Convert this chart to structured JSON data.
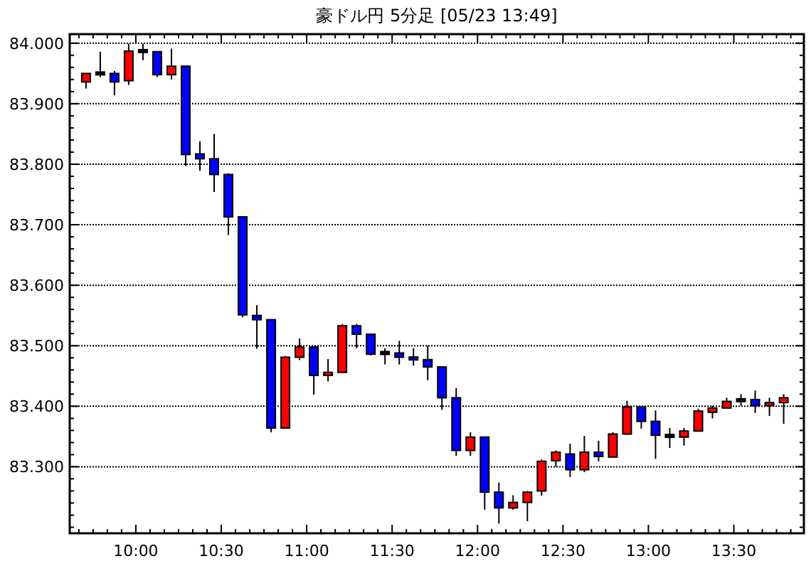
{
  "chart_data": {
    "type": "candlestick",
    "title": "豪ドル円 5分足 [05/23 13:49]",
    "x": [
      9.7083,
      9.7917,
      9.875,
      9.9583,
      10.0417,
      10.125,
      10.2083,
      10.2917,
      10.375,
      10.4583,
      10.5417,
      10.625,
      10.7083,
      10.7917,
      10.875,
      10.9583,
      11.0417,
      11.125,
      11.2083,
      11.2917,
      11.375,
      11.4583,
      11.5417,
      11.625,
      11.7083,
      11.7917,
      11.875,
      11.9583,
      12.0417,
      12.125,
      12.2083,
      12.2917,
      12.375,
      12.4583,
      12.5417,
      12.625,
      12.7083,
      12.7917,
      12.875,
      12.9583,
      13.0417,
      13.125,
      13.2083,
      13.2917,
      13.375,
      13.4583,
      13.5417,
      13.625,
      13.7083,
      13.7917
    ],
    "ohlc": [
      [
        83.936,
        83.95,
        83.925,
        83.95
      ],
      [
        83.95,
        83.986,
        83.944,
        83.95
      ],
      [
        83.95,
        83.954,
        83.914,
        83.936
      ],
      [
        83.938,
        83.999,
        83.931,
        83.987
      ],
      [
        83.987,
        83.999,
        83.972,
        83.987
      ],
      [
        83.986,
        83.986,
        83.944,
        83.948
      ],
      [
        83.948,
        83.991,
        83.94,
        83.962
      ],
      [
        83.962,
        83.962,
        83.797,
        83.816
      ],
      [
        83.817,
        83.838,
        83.789,
        83.809
      ],
      [
        83.809,
        83.85,
        83.754,
        83.783
      ],
      [
        83.783,
        83.785,
        83.683,
        83.713
      ],
      [
        83.713,
        83.713,
        83.547,
        83.551
      ],
      [
        83.55,
        83.567,
        83.495,
        83.543
      ],
      [
        83.543,
        83.543,
        83.357,
        83.364
      ],
      [
        83.364,
        83.483,
        83.364,
        83.481
      ],
      [
        83.481,
        83.512,
        83.476,
        83.498
      ],
      [
        83.498,
        83.498,
        83.419,
        83.451
      ],
      [
        83.451,
        83.478,
        83.441,
        83.456
      ],
      [
        83.456,
        83.536,
        83.456,
        83.533
      ],
      [
        83.533,
        83.536,
        83.496,
        83.519
      ],
      [
        83.519,
        83.519,
        83.484,
        83.486
      ],
      [
        83.488,
        83.496,
        83.469,
        83.488
      ],
      [
        83.488,
        83.508,
        83.469,
        83.481
      ],
      [
        83.481,
        83.496,
        83.467,
        83.477
      ],
      [
        83.477,
        83.5,
        83.443,
        83.465
      ],
      [
        83.465,
        83.466,
        83.394,
        83.414
      ],
      [
        83.414,
        83.43,
        83.318,
        83.327
      ],
      [
        83.327,
        83.357,
        83.318,
        83.349
      ],
      [
        83.349,
        83.349,
        83.229,
        83.258
      ],
      [
        83.258,
        83.274,
        83.206,
        83.232
      ],
      [
        83.232,
        83.253,
        83.229,
        83.241
      ],
      [
        83.241,
        83.26,
        83.21,
        83.258
      ],
      [
        83.26,
        83.312,
        83.252,
        83.309
      ],
      [
        83.31,
        83.327,
        83.3,
        83.324
      ],
      [
        83.321,
        83.338,
        83.283,
        83.295
      ],
      [
        83.295,
        83.351,
        83.291,
        83.324
      ],
      [
        83.324,
        83.343,
        83.309,
        83.317
      ],
      [
        83.316,
        83.357,
        83.316,
        83.354
      ],
      [
        83.354,
        83.409,
        83.354,
        83.399
      ],
      [
        83.399,
        83.399,
        83.363,
        83.375
      ],
      [
        83.375,
        83.393,
        83.313,
        83.352
      ],
      [
        83.351,
        83.364,
        83.331,
        83.351
      ],
      [
        83.349,
        83.364,
        83.335,
        83.359
      ],
      [
        83.359,
        83.396,
        83.359,
        83.392
      ],
      [
        83.39,
        83.401,
        83.38,
        83.397
      ],
      [
        83.397,
        83.414,
        83.397,
        83.408
      ],
      [
        83.41,
        83.42,
        83.401,
        83.41
      ],
      [
        83.411,
        83.426,
        83.389,
        83.401
      ],
      [
        83.401,
        83.414,
        83.384,
        83.406
      ],
      [
        83.406,
        83.42,
        83.371,
        83.414
      ]
    ],
    "colors": [
      "#ff0000",
      "#000000",
      "#0000ff",
      "#ff0000",
      "#000000",
      "#0000ff",
      "#ff0000",
      "#0000ff",
      "#0000ff",
      "#0000ff",
      "#0000ff",
      "#0000ff",
      "#0000ff",
      "#0000ff",
      "#ff0000",
      "#ff0000",
      "#0000ff",
      "#ff0000",
      "#ff0000",
      "#0000ff",
      "#0000ff",
      "#000000",
      "#0000ff",
      "#0000ff",
      "#0000ff",
      "#0000ff",
      "#0000ff",
      "#ff0000",
      "#0000ff",
      "#0000ff",
      "#ff0000",
      "#ff0000",
      "#ff0000",
      "#ff0000",
      "#0000ff",
      "#ff0000",
      "#0000ff",
      "#ff0000",
      "#ff0000",
      "#0000ff",
      "#0000ff",
      "#000000",
      "#ff0000",
      "#ff0000",
      "#ff0000",
      "#ff0000",
      "#000000",
      "#0000ff",
      "#ff0000",
      "#ff0000"
    ],
    "xlim": [
      9.613,
      13.91
    ],
    "xticks": [
      {
        "value": 9.6667,
        "label": null
      },
      {
        "value": 9.75,
        "label": null
      },
      {
        "value": 9.8333,
        "label": null
      },
      {
        "value": 9.9167,
        "label": null
      },
      {
        "value": 10,
        "label": "10:00"
      },
      {
        "value": 10.0833,
        "label": null
      },
      {
        "value": 10.1667,
        "label": null
      },
      {
        "value": 10.25,
        "label": null
      },
      {
        "value": 10.3333,
        "label": null
      },
      {
        "value": 10.4167,
        "label": null
      },
      {
        "value": 10.5,
        "label": "10:30"
      },
      {
        "value": 10.5833,
        "label": null
      },
      {
        "value": 10.6667,
        "label": null
      },
      {
        "value": 10.75,
        "label": null
      },
      {
        "value": 10.8333,
        "label": null
      },
      {
        "value": 10.9167,
        "label": null
      },
      {
        "value": 11,
        "label": "11:00"
      },
      {
        "value": 11.0833,
        "label": null
      },
      {
        "value": 11.1667,
        "label": null
      },
      {
        "value": 11.25,
        "label": null
      },
      {
        "value": 11.3333,
        "label": null
      },
      {
        "value": 11.4167,
        "label": null
      },
      {
        "value": 11.5,
        "label": "11:30"
      },
      {
        "value": 11.5833,
        "label": null
      },
      {
        "value": 11.6667,
        "label": null
      },
      {
        "value": 11.75,
        "label": null
      },
      {
        "value": 11.8333,
        "label": null
      },
      {
        "value": 11.9167,
        "label": null
      },
      {
        "value": 12,
        "label": "12:00"
      },
      {
        "value": 12.0833,
        "label": null
      },
      {
        "value": 12.1667,
        "label": null
      },
      {
        "value": 12.25,
        "label": null
      },
      {
        "value": 12.3333,
        "label": null
      },
      {
        "value": 12.4167,
        "label": null
      },
      {
        "value": 12.5,
        "label": "12:30"
      },
      {
        "value": 12.5833,
        "label": null
      },
      {
        "value": 12.6667,
        "label": null
      },
      {
        "value": 12.75,
        "label": null
      },
      {
        "value": 12.8333,
        "label": null
      },
      {
        "value": 12.9167,
        "label": null
      },
      {
        "value": 13,
        "label": "13:00"
      },
      {
        "value": 13.0833,
        "label": null
      },
      {
        "value": 13.1667,
        "label": null
      },
      {
        "value": 13.25,
        "label": null
      },
      {
        "value": 13.3333,
        "label": null
      },
      {
        "value": 13.4167,
        "label": null
      },
      {
        "value": 13.5,
        "label": "13:30"
      },
      {
        "value": 13.5833,
        "label": null
      },
      {
        "value": 13.6667,
        "label": null
      },
      {
        "value": 13.75,
        "label": null
      },
      {
        "value": 13.8333,
        "label": null
      }
    ],
    "ylim": [
      83.19,
      84.015
    ],
    "yticks": [
      {
        "value": 83.2,
        "label": null
      },
      {
        "value": 83.22,
        "label": null
      },
      {
        "value": 83.24,
        "label": null
      },
      {
        "value": 83.26,
        "label": null
      },
      {
        "value": 83.28,
        "label": null
      },
      {
        "value": 83.3,
        "label": "83.300"
      },
      {
        "value": 83.32,
        "label": null
      },
      {
        "value": 83.34,
        "label": null
      },
      {
        "value": 83.36,
        "label": null
      },
      {
        "value": 83.38,
        "label": null
      },
      {
        "value": 83.4,
        "label": "83.400"
      },
      {
        "value": 83.42,
        "label": null
      },
      {
        "value": 83.44,
        "label": null
      },
      {
        "value": 83.46,
        "label": null
      },
      {
        "value": 83.48,
        "label": null
      },
      {
        "value": 83.5,
        "label": "83.500"
      },
      {
        "value": 83.52,
        "label": null
      },
      {
        "value": 83.54,
        "label": null
      },
      {
        "value": 83.56,
        "label": null
      },
      {
        "value": 83.58,
        "label": null
      },
      {
        "value": 83.6,
        "label": "83.600"
      },
      {
        "value": 83.62,
        "label": null
      },
      {
        "value": 83.64,
        "label": null
      },
      {
        "value": 83.66,
        "label": null
      },
      {
        "value": 83.68,
        "label": null
      },
      {
        "value": 83.7,
        "label": "83.700"
      },
      {
        "value": 83.72,
        "label": null
      },
      {
        "value": 83.74,
        "label": null
      },
      {
        "value": 83.76,
        "label": null
      },
      {
        "value": 83.78,
        "label": null
      },
      {
        "value": 83.8,
        "label": "83.800"
      },
      {
        "value": 83.82,
        "label": null
      },
      {
        "value": 83.84,
        "label": null
      },
      {
        "value": 83.86,
        "label": null
      },
      {
        "value": 83.88,
        "label": null
      },
      {
        "value": 83.9,
        "label": "83.900"
      },
      {
        "value": 83.92,
        "label": null
      },
      {
        "value": 83.94,
        "label": null
      },
      {
        "value": 83.96,
        "label": null
      },
      {
        "value": 83.98,
        "label": null
      },
      {
        "value": 84.0,
        "label": "84.000"
      }
    ],
    "grid": "y"
  }
}
